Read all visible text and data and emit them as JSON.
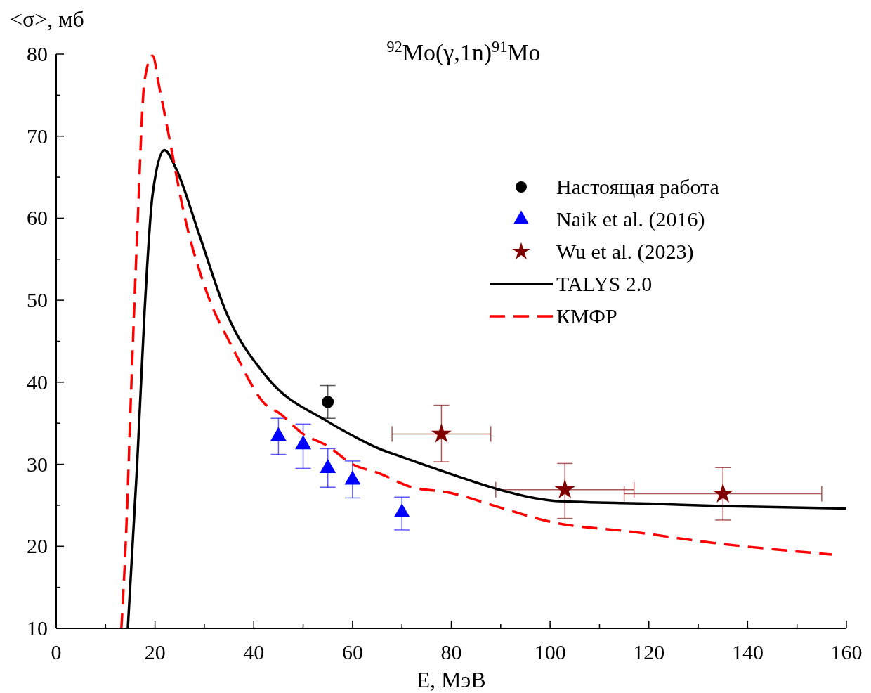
{
  "chart_data": {
    "type": "scatter",
    "title": "$^{92}$Mo(γ,1n)$^{91}$Mo",
    "xlabel": "E, МэВ",
    "ylabel": "<σ>, мб",
    "xlim": [
      0,
      160
    ],
    "ylim": [
      10,
      80
    ],
    "xticks": [
      0,
      {
        "value": 10,
        "label": null
      },
      20,
      {
        "value": 30,
        "label": null
      },
      40,
      {
        "value": 50,
        "label": null
      },
      60,
      {
        "value": 70,
        "label": null
      },
      80,
      {
        "value": 90,
        "label": null
      },
      100,
      {
        "value": 110,
        "label": null
      },
      120,
      {
        "value": 130,
        "label": null
      },
      140,
      {
        "value": 150,
        "label": null
      },
      160
    ],
    "yticks": [
      10,
      {
        "value": 15,
        "label": null
      },
      20,
      {
        "value": 25,
        "label": null
      },
      30,
      {
        "value": 35,
        "label": null
      },
      40,
      {
        "value": 45,
        "label": null
      },
      50,
      {
        "value": 55,
        "label": null
      },
      60,
      {
        "value": 65,
        "label": null
      },
      70,
      {
        "value": 75,
        "label": null
      },
      80
    ],
    "grid": false,
    "legend": "top right",
    "series": [
      {
        "name": "Настоящая работа",
        "marker": "circle",
        "color": "#000000",
        "x": [
          55
        ],
        "values": [
          37.6
        ],
        "errors": [
          2
        ]
      },
      {
        "name": "Naik et al. (2016)",
        "marker": "triangle",
        "color": "#0000ff",
        "x": [
          45,
          50,
          55,
          60,
          70
        ],
        "values": [
          33.4,
          32.4,
          29.5,
          28.1,
          24.1
        ],
        "errors": [
          [
            31.2,
            35.6
          ],
          [
            29.5,
            34.9
          ],
          [
            27.2,
            31.9
          ],
          [
            25.9,
            30.4
          ],
          [
            22,
            26
          ]
        ]
      },
      {
        "name": "Wu et al. (2023)",
        "marker": "star",
        "color": "#800000",
        "x": [
          78,
          103,
          135
        ],
        "values": [
          33.7,
          26.9,
          26.4
        ],
        "errors": [
          [
            30.3,
            37.2
          ],
          [
            23.4,
            30.1
          ],
          [
            23.2,
            29.6
          ]
        ],
        "xerrors": [
          [
            68,
            88
          ],
          [
            89,
            117
          ],
          [
            115,
            155
          ]
        ]
      },
      {
        "name": "TALYS 2.0",
        "type": "line",
        "marker": "none",
        "line_style": "solid",
        "color": "#000000",
        "x": [
          14.5,
          16.4,
          17.9,
          19.5,
          21.9,
          24.3,
          28.9,
          34.3,
          42.7,
          55,
          60,
          65.4,
          70,
          80,
          89.2,
          101.8,
          120,
          134.7,
          160
        ],
        "values": [
          10,
          30.1,
          48.7,
          62.8,
          68.3,
          66,
          58.1,
          48.7,
          40.6,
          35.2,
          33.5,
          31.9,
          30.9,
          28.8,
          27,
          25.5,
          25.2,
          24.9,
          24.6
        ]
      },
      {
        "name": "КМФР",
        "type": "line",
        "marker": "none",
        "line_style": "dashed",
        "color": "#ff0000",
        "x": [
          13.2,
          14.1,
          15.2,
          16.4,
          17.9,
          19.5,
          20.9,
          22.9,
          25.9,
          30.4,
          35.8,
          42.7,
          45,
          50,
          55,
          60,
          65.4,
          71.5,
          80,
          90,
          100,
          117.6,
          132,
          157
        ],
        "values": [
          10,
          20.7,
          39.4,
          58.1,
          76.8,
          79.8,
          75.9,
          69.8,
          60.5,
          51.1,
          44.1,
          37.1,
          36.3,
          33.7,
          32.2,
          30,
          28.9,
          27.3,
          26.5,
          24.7,
          23,
          21.7,
          20.5,
          19
        ]
      }
    ]
  }
}
